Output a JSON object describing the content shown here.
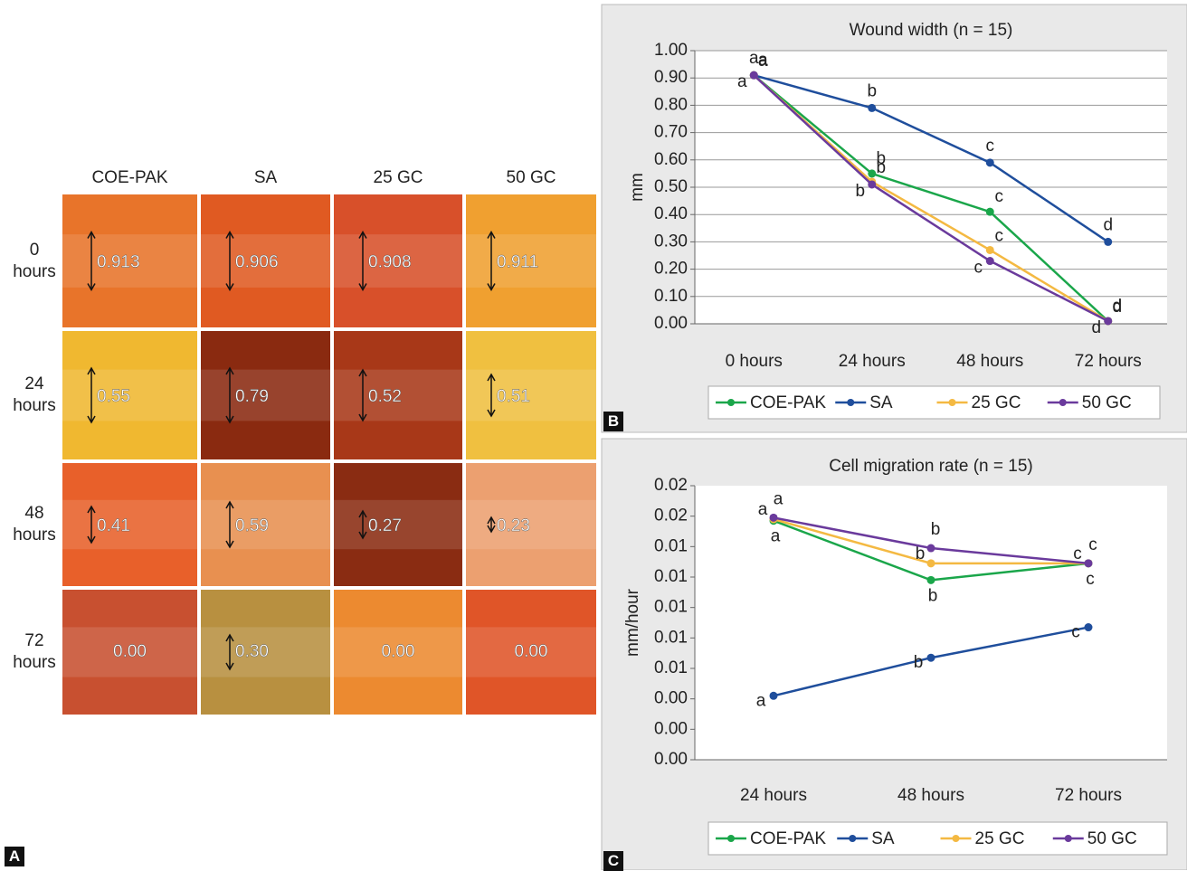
{
  "panel_a": {
    "label": "A",
    "columns": [
      "COE-PAK",
      "SA",
      "25 GC",
      "50 GC"
    ],
    "rows": [
      "0 hours",
      "24 hours",
      "48 hours",
      "72 hours"
    ],
    "cells": [
      [
        "0.913",
        "0.906",
        "0.908",
        "0.911"
      ],
      [
        "0.55",
        "0.79",
        "0.52",
        "0.51"
      ],
      [
        "0.41",
        "0.59",
        "0.27",
        "0.23"
      ],
      [
        "0.00",
        "0.30",
        "0.00",
        "0.00"
      ]
    ]
  },
  "chart_data": [
    {
      "type": "line",
      "panel_label": "B",
      "title": "Wound width (n = 15)",
      "y_label": "mm",
      "categories": [
        "0 hours",
        "24 hours",
        "48 hours",
        "72 hours"
      ],
      "ylim": [
        0,
        1
      ],
      "yticks": [
        {
          "value": 0,
          "label": "0.00"
        },
        {
          "value": 0.1,
          "label": "0.10"
        },
        {
          "value": 0.2,
          "label": "0.20"
        },
        {
          "value": 0.3,
          "label": "0.30"
        },
        {
          "value": 0.4,
          "label": "0.40"
        },
        {
          "value": 0.5,
          "label": "0.50"
        },
        {
          "value": 0.6,
          "label": "0.60"
        },
        {
          "value": 0.7,
          "label": "0.70"
        },
        {
          "value": 0.8,
          "label": "0.80"
        },
        {
          "value": 0.9,
          "label": "0.90"
        },
        {
          "value": 1,
          "label": "1.00"
        }
      ],
      "grid": true,
      "legend": "bottom",
      "series": [
        {
          "name": "COE-PAK",
          "color": "#1aa64a",
          "values": [
            0.91,
            0.55,
            0.41,
            0.01
          ],
          "point_labels": [
            "a",
            "b",
            "c",
            "d"
          ]
        },
        {
          "name": "SA",
          "color": "#1f4e9c",
          "values": [
            0.91,
            0.79,
            0.59,
            0.3
          ],
          "point_labels": [
            "a",
            "b",
            "c",
            "d"
          ]
        },
        {
          "name": "25 GC",
          "color": "#f4b942",
          "values": [
            0.91,
            0.52,
            0.27,
            0.01
          ],
          "point_labels": [
            "a",
            "b",
            "c",
            "d"
          ]
        },
        {
          "name": "50 GC",
          "color": "#6a3a9c",
          "values": [
            0.91,
            0.51,
            0.23,
            0.01
          ],
          "point_labels": [
            "a",
            "b",
            "c",
            "d"
          ]
        }
      ]
    },
    {
      "type": "line",
      "panel_label": "C",
      "title": "Cell migration rate (n = 15)",
      "y_label": "mm/hour",
      "categories": [
        "24 hours",
        "48 hours",
        "72 hours"
      ],
      "ylim": [
        0,
        0.018
      ],
      "yticks": [
        {
          "value": 0,
          "label": "0.00"
        },
        {
          "value": 0.002,
          "label": "0.00"
        },
        {
          "value": 0.004,
          "label": "0.00"
        },
        {
          "value": 0.006,
          "label": "0.01"
        },
        {
          "value": 0.008,
          "label": "0.01"
        },
        {
          "value": 0.01,
          "label": "0.01"
        },
        {
          "value": 0.012,
          "label": "0.01"
        },
        {
          "value": 0.014,
          "label": "0.01"
        },
        {
          "value": 0.016,
          "label": "0.02"
        },
        {
          "value": 0.018,
          "label": "0.02"
        }
      ],
      "grid": false,
      "legend": "bottom",
      "series": [
        {
          "name": "COE-PAK",
          "color": "#1aa64a",
          "values": [
            0.0157,
            0.0118,
            0.0129
          ],
          "point_labels": [
            "a",
            "b",
            "c"
          ]
        },
        {
          "name": "SA",
          "color": "#1f4e9c",
          "values": [
            0.0042,
            0.0067,
            0.0087
          ],
          "point_labels": [
            "a",
            "b",
            "c"
          ]
        },
        {
          "name": "25 GC",
          "color": "#f4b942",
          "values": [
            0.0158,
            0.0129,
            0.0129
          ],
          "point_labels": [
            "a",
            "b",
            "c"
          ]
        },
        {
          "name": "50 GC",
          "color": "#6a3a9c",
          "values": [
            0.0159,
            0.0139,
            0.0129
          ],
          "point_labels": [
            "a",
            "b",
            "c"
          ]
        }
      ]
    }
  ]
}
